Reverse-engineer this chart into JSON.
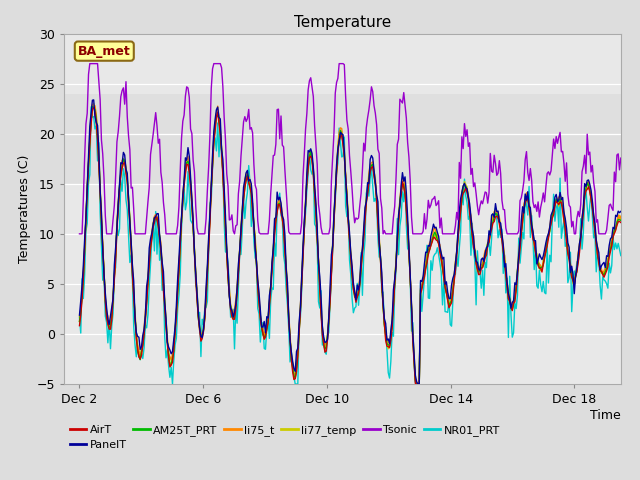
{
  "title": "Temperature",
  "xlabel": "Time",
  "ylabel": "Temperatures (C)",
  "ylim": [
    -5,
    30
  ],
  "yticks": [
    -5,
    0,
    5,
    10,
    15,
    20,
    25,
    30
  ],
  "xtick_positions": [
    2,
    6,
    10,
    14,
    18
  ],
  "xtick_labels": [
    "Dec 2",
    "Dec 6",
    "Dec 10",
    "Dec 14",
    "Dec 18"
  ],
  "annotation_text": "BA_met",
  "annotation_color": "#8B0000",
  "annotation_bg": "#FFFF99",
  "annotation_edge": "#8B6914",
  "fig_bg": "#DDDDDD",
  "plot_bg": "#E8E8E8",
  "series_order": [
    "NR01_PRT",
    "li77_temp",
    "li75_t",
    "AM25T_PRT",
    "AirT",
    "PanelT",
    "Tsonic"
  ],
  "legend_order": [
    "AirT",
    "PanelT",
    "AM25T_PRT",
    "li75_t",
    "li77_temp",
    "Tsonic",
    "NR01_PRT"
  ],
  "series": {
    "AirT": {
      "color": "#CC0000"
    },
    "PanelT": {
      "color": "#000099"
    },
    "AM25T_PRT": {
      "color": "#00BB00"
    },
    "li75_t": {
      "color": "#FF8800"
    },
    "li77_temp": {
      "color": "#CCCC00"
    },
    "Tsonic": {
      "color": "#9900CC"
    },
    "NR01_PRT": {
      "color": "#00CCCC"
    }
  },
  "grid_color": "#FFFFFF",
  "title_fontsize": 11,
  "label_fontsize": 9,
  "tick_fontsize": 9,
  "legend_fontsize": 8,
  "linewidth": 1.0,
  "xlim": [
    1.5,
    19.5
  ],
  "shaded_band": [
    15,
    24
  ]
}
